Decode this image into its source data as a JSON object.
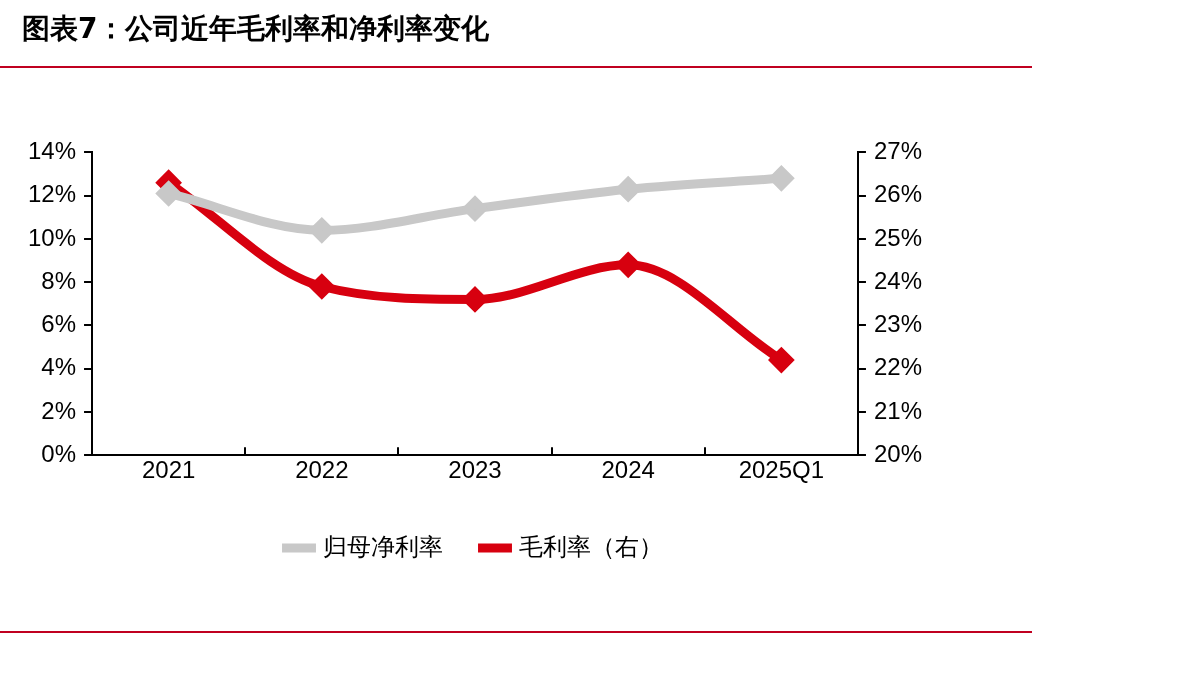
{
  "chart_data": {
    "type": "line",
    "title": "图表7：公司近年毛利率和净利率变化",
    "categories": [
      "2021",
      "2022",
      "2023",
      "2024",
      "2025Q1"
    ],
    "series": [
      {
        "name": "归母净利率",
        "color": "#c8c8c8",
        "values": [
          12.1,
          10.4,
          11.4,
          12.3,
          12.8
        ]
      },
      {
        "name": "毛利率（右）",
        "color": "#d7000f",
        "axis": "y2",
        "values": [
          26.3,
          23.9,
          23.6,
          24.4,
          22.2
        ]
      }
    ],
    "ylim": [
      0,
      14
    ],
    "yticks": [
      {
        "value": 0,
        "label": "0%"
      },
      {
        "value": 2,
        "label": "2%"
      },
      {
        "value": 4,
        "label": "4%"
      },
      {
        "value": 6,
        "label": "6%"
      },
      {
        "value": 8,
        "label": "8%"
      },
      {
        "value": 10,
        "label": "10%"
      },
      {
        "value": 12,
        "label": "12%"
      },
      {
        "value": 14,
        "label": "14%"
      }
    ],
    "y2lim": [
      20,
      27
    ],
    "y2ticks": [
      {
        "value": 20,
        "label": "20%"
      },
      {
        "value": 21,
        "label": "21%"
      },
      {
        "value": 22,
        "label": "22%"
      },
      {
        "value": 23,
        "label": "23%"
      },
      {
        "value": 24,
        "label": "24%"
      },
      {
        "value": 25,
        "label": "25%"
      },
      {
        "value": 26,
        "label": "26%"
      },
      {
        "value": 27,
        "label": "27%"
      }
    ],
    "grid": false,
    "legend": "bottom",
    "marker": "diamond",
    "line_style": "solid"
  }
}
